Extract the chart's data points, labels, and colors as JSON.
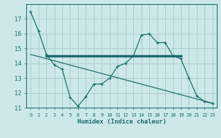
{
  "xlabel": "Humidex (Indice chaleur)",
  "background_color": "#cce8e8",
  "grid_color": "#aacccc",
  "line_color": "#1a6b6b",
  "x_values": [
    0,
    1,
    2,
    3,
    4,
    5,
    6,
    7,
    8,
    9,
    10,
    11,
    12,
    13,
    14,
    15,
    16,
    17,
    18,
    19,
    20,
    21,
    22,
    23
  ],
  "series1": [
    17.5,
    16.2,
    14.6,
    13.9,
    13.6,
    11.7,
    11.1,
    11.75,
    12.6,
    12.6,
    13.0,
    13.8,
    14.0,
    14.5,
    15.9,
    16.0,
    15.4,
    15.4,
    14.5,
    14.3,
    13.0,
    11.8,
    11.4,
    11.3
  ],
  "flat_line_x": [
    2,
    19
  ],
  "flat_line_y": [
    14.5,
    14.5
  ],
  "diag_line_x": [
    0,
    23
  ],
  "diag_line_y": [
    14.6,
    11.3
  ],
  "ylim": [
    11,
    18
  ],
  "xlim": [
    -0.5,
    23.5
  ],
  "yticks": [
    11,
    12,
    13,
    14,
    15,
    16,
    17
  ],
  "xtick_labels": [
    "0",
    "1",
    "2",
    "3",
    "4",
    "5",
    "6",
    "7",
    "8",
    "9",
    "10",
    "11",
    "12",
    "13",
    "14",
    "15",
    "16",
    "17",
    "18",
    "19",
    "20",
    "21",
    "22",
    "23"
  ]
}
